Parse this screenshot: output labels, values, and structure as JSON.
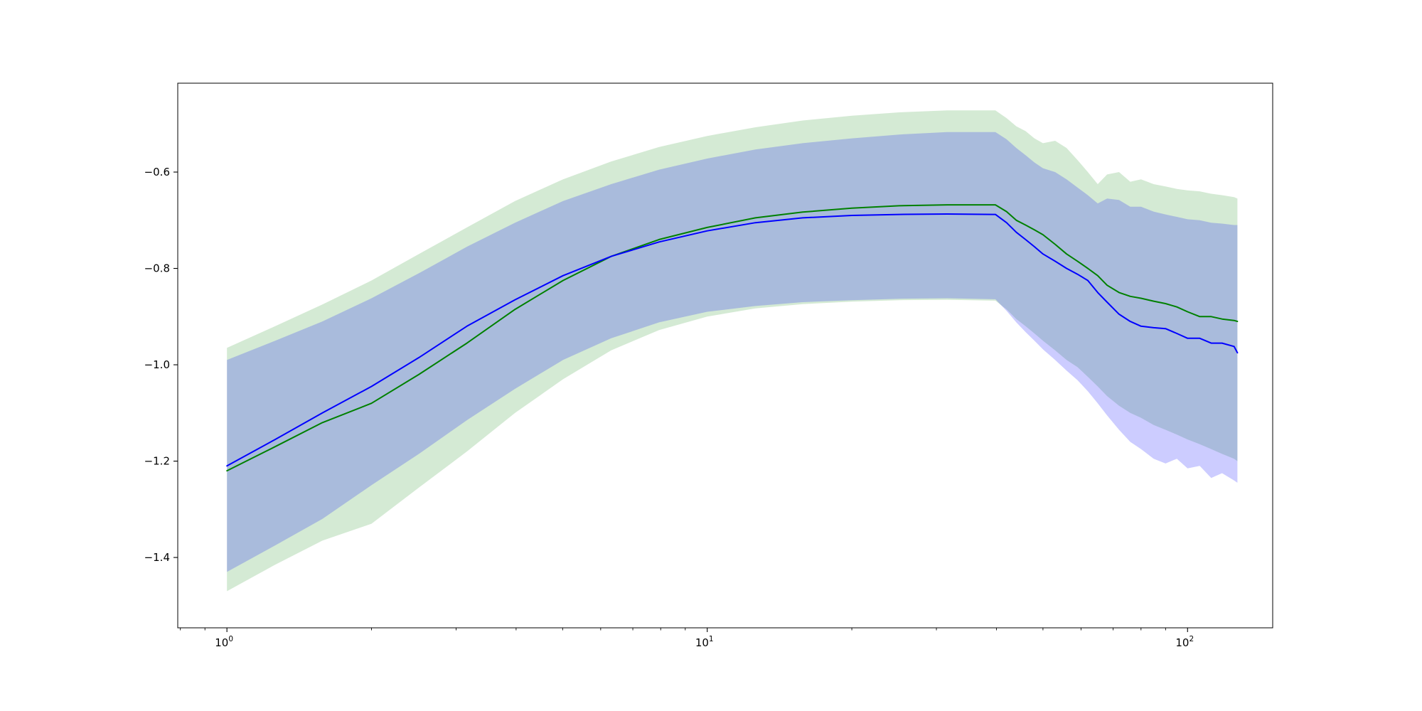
{
  "figure": {
    "background": "#ffffff"
  },
  "chart_data": {
    "type": "line",
    "title": "",
    "xlabel": "",
    "ylabel": "",
    "x_scale": "log",
    "xlim": [
      0.79,
      150.4
    ],
    "ylim": [
      -1.546,
      -0.4155
    ],
    "grid": false,
    "legend": "none",
    "x_ticks": [
      {
        "value": 1,
        "base": "10",
        "exp": "0"
      },
      {
        "value": 10,
        "base": "10",
        "exp": "1"
      },
      {
        "value": 100,
        "base": "10",
        "exp": "2"
      }
    ],
    "y_ticks": [
      {
        "value": -0.6,
        "label": "−0.6"
      },
      {
        "value": -0.8,
        "label": "−0.8"
      },
      {
        "value": -1.0,
        "label": "−1.0"
      },
      {
        "value": -1.2,
        "label": "−1.2"
      },
      {
        "value": -1.4,
        "label": "−1.4"
      }
    ],
    "x": [
      1,
      1.26,
      1.58,
      2.0,
      2.51,
      3.16,
      3.98,
      5.01,
      6.31,
      7.94,
      10,
      12.6,
      15.8,
      20,
      25.1,
      31.6,
      39.8,
      42,
      44,
      46,
      48,
      50,
      53,
      56,
      59,
      62,
      65,
      68,
      72,
      76,
      80,
      85,
      90,
      95,
      100,
      106,
      112,
      118,
      125,
      127
    ],
    "series": [
      {
        "name": "green-curve",
        "color": "#008000",
        "band_color": "#008000",
        "band_alpha": 0.17,
        "mean": [
          -1.22,
          -1.17,
          -1.12,
          -1.08,
          -1.02,
          -0.955,
          -0.885,
          -0.825,
          -0.775,
          -0.74,
          -0.715,
          -0.695,
          -0.683,
          -0.675,
          -0.67,
          -0.668,
          -0.668,
          -0.682,
          -0.7,
          -0.71,
          -0.72,
          -0.73,
          -0.75,
          -0.77,
          -0.785,
          -0.8,
          -0.815,
          -0.835,
          -0.85,
          -0.858,
          -0.862,
          -0.868,
          -0.873,
          -0.88,
          -0.89,
          -0.9,
          -0.9,
          -0.905,
          -0.908,
          -0.91
        ],
        "upper": [
          -0.965,
          -0.92,
          -0.875,
          -0.825,
          -0.77,
          -0.715,
          -0.66,
          -0.615,
          -0.578,
          -0.548,
          -0.525,
          -0.507,
          -0.493,
          -0.483,
          -0.476,
          -0.472,
          -0.472,
          -0.488,
          -0.505,
          -0.515,
          -0.53,
          -0.54,
          -0.535,
          -0.55,
          -0.575,
          -0.6,
          -0.625,
          -0.605,
          -0.6,
          -0.62,
          -0.615,
          -0.625,
          -0.63,
          -0.635,
          -0.638,
          -0.64,
          -0.645,
          -0.648,
          -0.652,
          -0.655
        ],
        "lower": [
          -1.47,
          -1.415,
          -1.365,
          -1.33,
          -1.255,
          -1.18,
          -1.1,
          -1.03,
          -0.97,
          -0.928,
          -0.9,
          -0.883,
          -0.874,
          -0.869,
          -0.866,
          -0.865,
          -0.867,
          -0.885,
          -0.905,
          -0.92,
          -0.935,
          -0.95,
          -0.97,
          -0.99,
          -1.005,
          -1.025,
          -1.045,
          -1.065,
          -1.085,
          -1.1,
          -1.11,
          -1.125,
          -1.135,
          -1.145,
          -1.155,
          -1.165,
          -1.175,
          -1.185,
          -1.195,
          -1.2
        ]
      },
      {
        "name": "blue-curve",
        "color": "#0000ff",
        "band_color": "#0000ff",
        "band_alpha": 0.2,
        "mean": [
          -1.21,
          -1.155,
          -1.1,
          -1.045,
          -0.985,
          -0.92,
          -0.865,
          -0.815,
          -0.775,
          -0.745,
          -0.722,
          -0.705,
          -0.695,
          -0.69,
          -0.688,
          -0.687,
          -0.688,
          -0.705,
          -0.725,
          -0.74,
          -0.755,
          -0.77,
          -0.785,
          -0.8,
          -0.812,
          -0.825,
          -0.85,
          -0.87,
          -0.895,
          -0.91,
          -0.92,
          -0.923,
          -0.925,
          -0.935,
          -0.945,
          -0.945,
          -0.955,
          -0.955,
          -0.962,
          -0.975
        ],
        "upper": [
          -0.99,
          -0.95,
          -0.91,
          -0.862,
          -0.81,
          -0.755,
          -0.705,
          -0.66,
          -0.625,
          -0.595,
          -0.572,
          -0.553,
          -0.54,
          -0.53,
          -0.522,
          -0.517,
          -0.517,
          -0.532,
          -0.55,
          -0.565,
          -0.58,
          -0.592,
          -0.6,
          -0.615,
          -0.632,
          -0.648,
          -0.665,
          -0.655,
          -0.658,
          -0.672,
          -0.672,
          -0.682,
          -0.688,
          -0.693,
          -0.698,
          -0.7,
          -0.705,
          -0.707,
          -0.71,
          -0.71
        ],
        "lower": [
          -1.43,
          -1.375,
          -1.32,
          -1.25,
          -1.185,
          -1.115,
          -1.05,
          -0.99,
          -0.945,
          -0.912,
          -0.89,
          -0.878,
          -0.87,
          -0.866,
          -0.863,
          -0.862,
          -0.864,
          -0.888,
          -0.912,
          -0.932,
          -0.95,
          -0.968,
          -0.99,
          -1.012,
          -1.032,
          -1.055,
          -1.08,
          -1.105,
          -1.135,
          -1.16,
          -1.175,
          -1.195,
          -1.205,
          -1.195,
          -1.215,
          -1.21,
          -1.235,
          -1.225,
          -1.24,
          -1.245
        ]
      }
    ]
  }
}
